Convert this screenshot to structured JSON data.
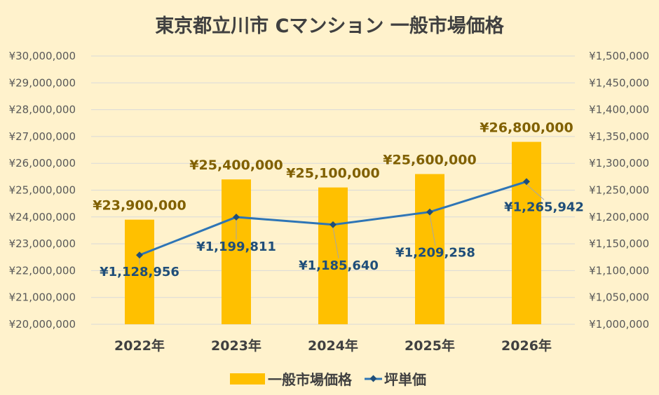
{
  "chart_data": {
    "type": "bar",
    "title": "東京都立川市 Cマンション 一般市場価格",
    "categories": [
      "2022年",
      "2023年",
      "2024年",
      "2025年",
      "2026年"
    ],
    "series": [
      {
        "name": "一般市場価格",
        "type": "bar",
        "axis": "left",
        "values": [
          23900000,
          25400000,
          25100000,
          25600000,
          26800000
        ],
        "labels": [
          "¥23,900,000",
          "¥25,400,000",
          "¥25,100,000",
          "¥25,600,000",
          "¥26,800,000"
        ],
        "color": "#ffc000"
      },
      {
        "name": "坪単価",
        "type": "line",
        "axis": "right",
        "values": [
          1128956,
          1199811,
          1185640,
          1209258,
          1265942
        ],
        "labels": [
          "¥1,128,956",
          "¥1,199,811",
          "¥1,185,640",
          "¥1,209,258",
          "¥1,265,942"
        ],
        "color": "#2e75b6"
      }
    ],
    "y_left": {
      "min": 20000000,
      "max": 30000000,
      "step": 1000000,
      "ticks": [
        "¥20,000,000",
        "¥21,000,000",
        "¥22,000,000",
        "¥23,000,000",
        "¥24,000,000",
        "¥25,000,000",
        "¥26,000,000",
        "¥27,000,000",
        "¥28,000,000",
        "¥29,000,000",
        "¥30,000,000"
      ]
    },
    "y_right": {
      "min": 1000000,
      "max": 1500000,
      "step": 50000,
      "ticks": [
        "¥1,000,000",
        "¥1,050,000",
        "¥1,100,000",
        "¥1,150,000",
        "¥1,200,000",
        "¥1,250,000",
        "¥1,300,000",
        "¥1,350,000",
        "¥1,400,000",
        "¥1,450,000",
        "¥1,500,000"
      ]
    },
    "grid": true,
    "legend": "bottom",
    "colors": {
      "background": "#fff2cc",
      "grid": "#d9d9d9",
      "bar_label": "#806000",
      "line_label": "#1f4e79"
    }
  }
}
